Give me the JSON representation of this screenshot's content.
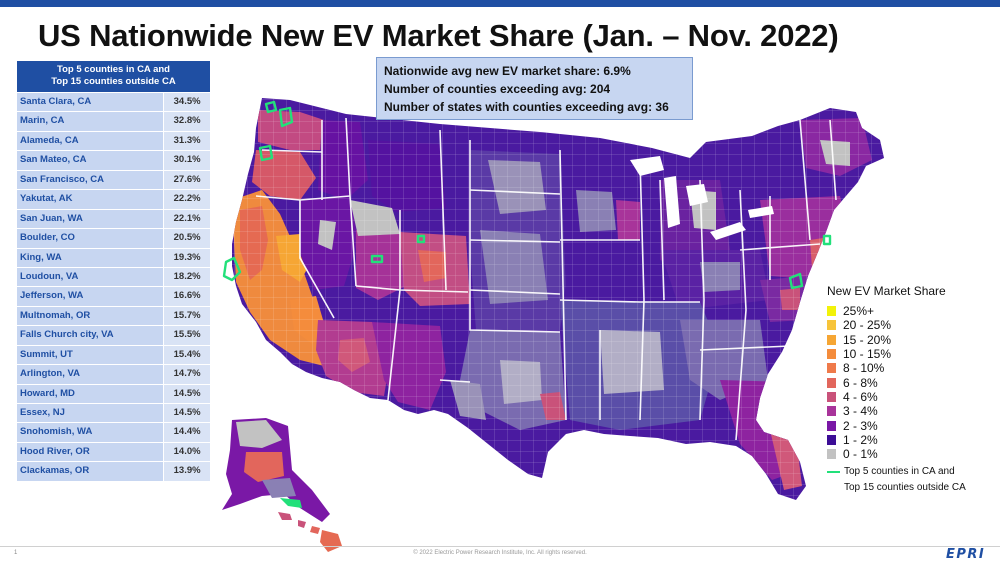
{
  "title": "US Nationwide New EV Market Share (Jan. – Nov. 2022)",
  "table": {
    "header_line1": "Top 5 counties in CA and",
    "header_line2": "Top 15 counties outside CA",
    "rows": [
      {
        "county": "Santa Clara, CA",
        "share": "34.5%"
      },
      {
        "county": "Marin, CA",
        "share": "32.8%"
      },
      {
        "county": "Alameda, CA",
        "share": "31.3%"
      },
      {
        "county": "San Mateo, CA",
        "share": "30.1%"
      },
      {
        "county": "San Francisco, CA",
        "share": "27.6%"
      },
      {
        "county": "Yakutat, AK",
        "share": "22.2%"
      },
      {
        "county": "San Juan, WA",
        "share": "22.1%"
      },
      {
        "county": "Boulder, CO",
        "share": "20.5%"
      },
      {
        "county": "King, WA",
        "share": "19.3%"
      },
      {
        "county": "Loudoun, VA",
        "share": "18.2%"
      },
      {
        "county": "Jefferson, WA",
        "share": "16.6%"
      },
      {
        "county": "Multnomah, OR",
        "share": "15.7%"
      },
      {
        "county": "Falls Church city, VA",
        "share": "15.5%"
      },
      {
        "county": "Summit, UT",
        "share": "15.4%"
      },
      {
        "county": "Arlington, VA",
        "share": "14.7%"
      },
      {
        "county": "Howard, MD",
        "share": "14.5%"
      },
      {
        "county": "Essex, NJ",
        "share": "14.5%"
      },
      {
        "county": "Snohomish, WA",
        "share": "14.4%"
      },
      {
        "county": "Hood River, OR",
        "share": "14.0%"
      },
      {
        "county": "Clackamas, OR",
        "share": "13.9%"
      }
    ]
  },
  "stats": {
    "line1": "Nationwide avg new EV market share: 6.9%",
    "line2": "Number of counties exceeding avg: 204",
    "line3": "Number of states with counties exceeding avg: 36"
  },
  "legend": {
    "title": "New EV Market Share",
    "items": [
      {
        "label": "25%+",
        "color": "#f2f20a"
      },
      {
        "label": "20 - 25%",
        "color": "#f7c43a"
      },
      {
        "label": "15 - 20%",
        "color": "#f6a634"
      },
      {
        "label": "10 - 15%",
        "color": "#f48c3c"
      },
      {
        "label": "8 - 10%",
        "color": "#ef7a4a"
      },
      {
        "label": "6 - 8%",
        "color": "#e2665c"
      },
      {
        "label": "4 - 6%",
        "color": "#c9527a"
      },
      {
        "label": "3 - 4%",
        "color": "#a8349a"
      },
      {
        "label": "2 - 3%",
        "color": "#7a18a6"
      },
      {
        "label": "1 - 2%",
        "color": "#3c0d96"
      },
      {
        "label": "0 - 1%",
        "color": "#c2c2c2"
      }
    ],
    "line_label1": "Top 5 counties in CA and",
    "line_label2": "Top 15 counties outside CA",
    "line_color": "#22e07a"
  },
  "footer": {
    "page_number": "1",
    "copyright": "© 2022 Electric Power Research Institute, Inc. All rights reserved.",
    "logo": "EPRI"
  },
  "colors": {
    "brand_blue": "#1f4fa3",
    "table_name_bg": "#c7d6f1",
    "table_value_bg": "#d9e3f5"
  }
}
